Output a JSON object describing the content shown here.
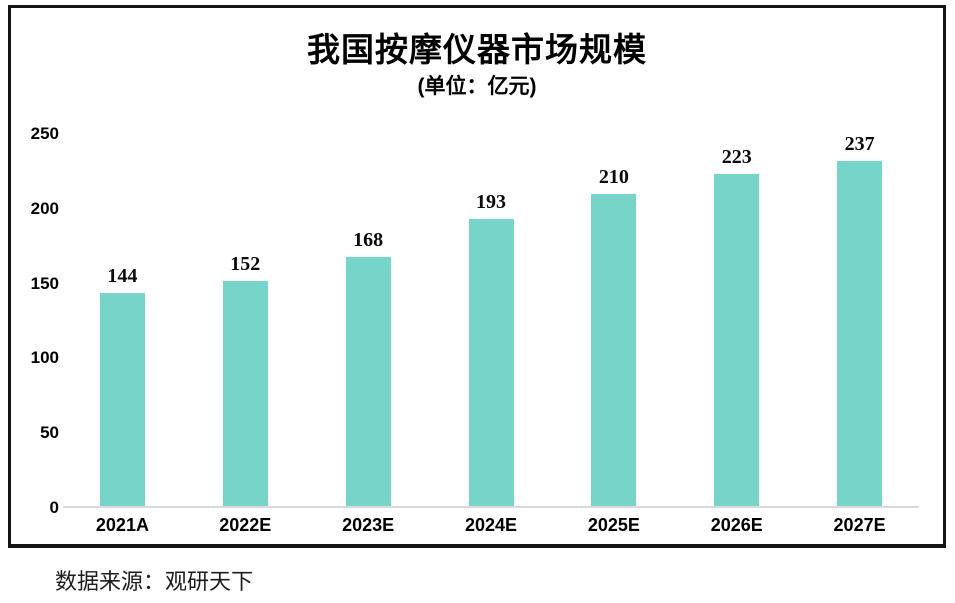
{
  "chart_data": {
    "type": "bar",
    "title": "我国按摩仪器市场规模",
    "subtitle": "(单位：亿元)",
    "categories": [
      "2021A",
      "2022E",
      "2023E",
      "2024E",
      "2025E",
      "2026E",
      "2027E"
    ],
    "values": [
      144,
      152,
      168,
      193,
      210,
      223,
      237
    ],
    "xlabel": "",
    "ylabel": "",
    "ylim": [
      0,
      250
    ],
    "yticks": [
      0,
      50,
      100,
      150,
      200,
      250
    ],
    "grid": false,
    "legend_position": "none",
    "bar_color": "#76d5c8",
    "baseline_color": "#d9d9d9",
    "frame_border_color": "#151515"
  },
  "footer": {
    "source": "数据来源：观研天下"
  }
}
